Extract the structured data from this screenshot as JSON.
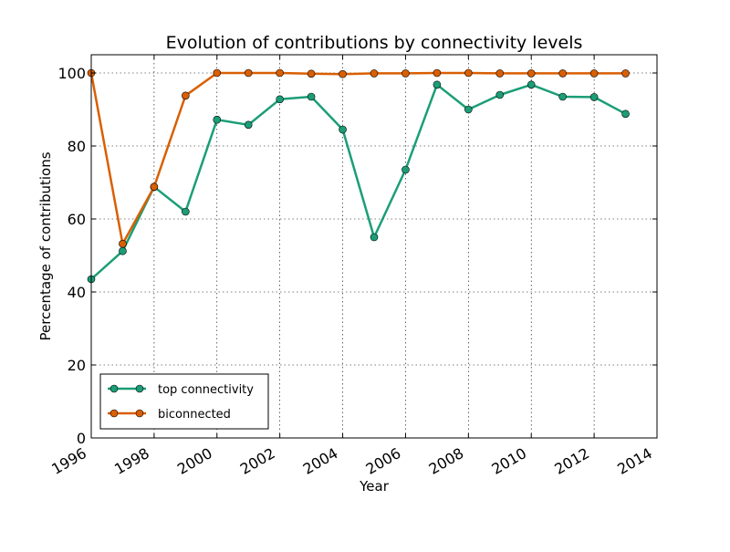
{
  "chart_data": {
    "type": "line",
    "title": "Evolution of contributions by connectivity levels",
    "xlabel": "Year",
    "ylabel": "Percentage of contributions",
    "xlim": [
      1996,
      2014
    ],
    "ylim": [
      0,
      105
    ],
    "x_ticks": [
      "1996",
      "1998",
      "2000",
      "2002",
      "2004",
      "2006",
      "2008",
      "2010",
      "2012",
      "2014"
    ],
    "y_ticks": [
      "0",
      "20",
      "40",
      "60",
      "80",
      "100"
    ],
    "grid": true,
    "legend_position": "lower-left",
    "x": [
      1996,
      1997,
      1998,
      1999,
      2000,
      2001,
      2002,
      2003,
      2004,
      2005,
      2006,
      2007,
      2008,
      2009,
      2010,
      2011,
      2012,
      2013
    ],
    "series": [
      {
        "name": "top connectivity",
        "color": "#1b9e77",
        "values": [
          43.5,
          51.2,
          68.8,
          62.0,
          87.2,
          85.8,
          92.8,
          93.5,
          84.5,
          55.0,
          73.5,
          96.8,
          90.0,
          94.0,
          96.8,
          93.5,
          93.4,
          88.8
        ]
      },
      {
        "name": "biconnected",
        "color": "#d95f02",
        "values": [
          100.0,
          53.2,
          68.8,
          93.8,
          100.0,
          100.0,
          100.0,
          99.8,
          99.7,
          99.9,
          99.9,
          100.0,
          100.0,
          99.9,
          99.9,
          99.9,
          99.9,
          99.9
        ]
      }
    ]
  }
}
